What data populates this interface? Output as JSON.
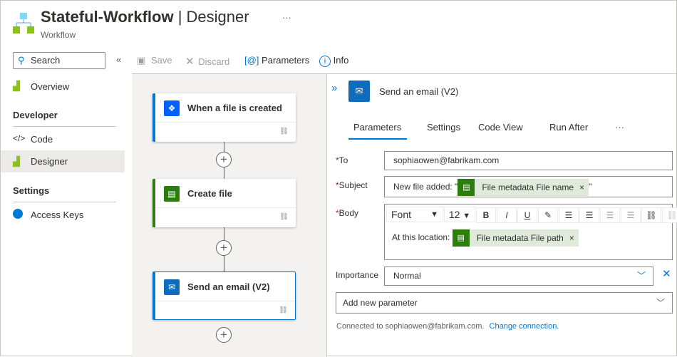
{
  "header": {
    "title": "Stateful-Workflow",
    "title_suffix": " | Designer",
    "subtitle": "Workflow",
    "more": "···"
  },
  "sidebar": {
    "search_placeholder": "Search",
    "collapse": "«",
    "items": [
      {
        "label": "Overview"
      },
      {
        "label": "Code"
      },
      {
        "label": "Designer"
      },
      {
        "label": "Access Keys"
      }
    ],
    "sections": [
      "Developer",
      "Settings"
    ]
  },
  "toolbar": {
    "save": "Save",
    "discard": "Discard",
    "parameters": "Parameters",
    "info": "Info"
  },
  "canvas": {
    "steps": [
      {
        "label": "When a file is created"
      },
      {
        "label": "Create file"
      },
      {
        "label": "Send an email (V2)"
      }
    ]
  },
  "panel": {
    "title": "Send an email (V2)",
    "expand": "»",
    "tabs": [
      "Parameters",
      "Settings",
      "Code View",
      "Run After"
    ],
    "tabs_more": "···",
    "fields": {
      "to_label": "To",
      "to_value": "sophiaowen@fabrikam.com",
      "subject_label": "Subject",
      "subject_prefix": "New file added: \"",
      "subject_token": "File metadata File name",
      "subject_suffix": "\"",
      "body_label": "Body",
      "body_prefix": "At this location:",
      "body_token": "File metadata File path",
      "font": "Font",
      "size": "12",
      "importance_label": "Importance",
      "importance_value": "Normal",
      "add_param": "Add new parameter"
    },
    "connection_text": "Connected to sophiaowen@fabrikam.com.",
    "change_connection": "Change connection."
  },
  "colors": {
    "accent": "#0078d4",
    "token_green": "#2b7d0c",
    "token_bg": "#dfeadb",
    "required": "#a4262c"
  }
}
